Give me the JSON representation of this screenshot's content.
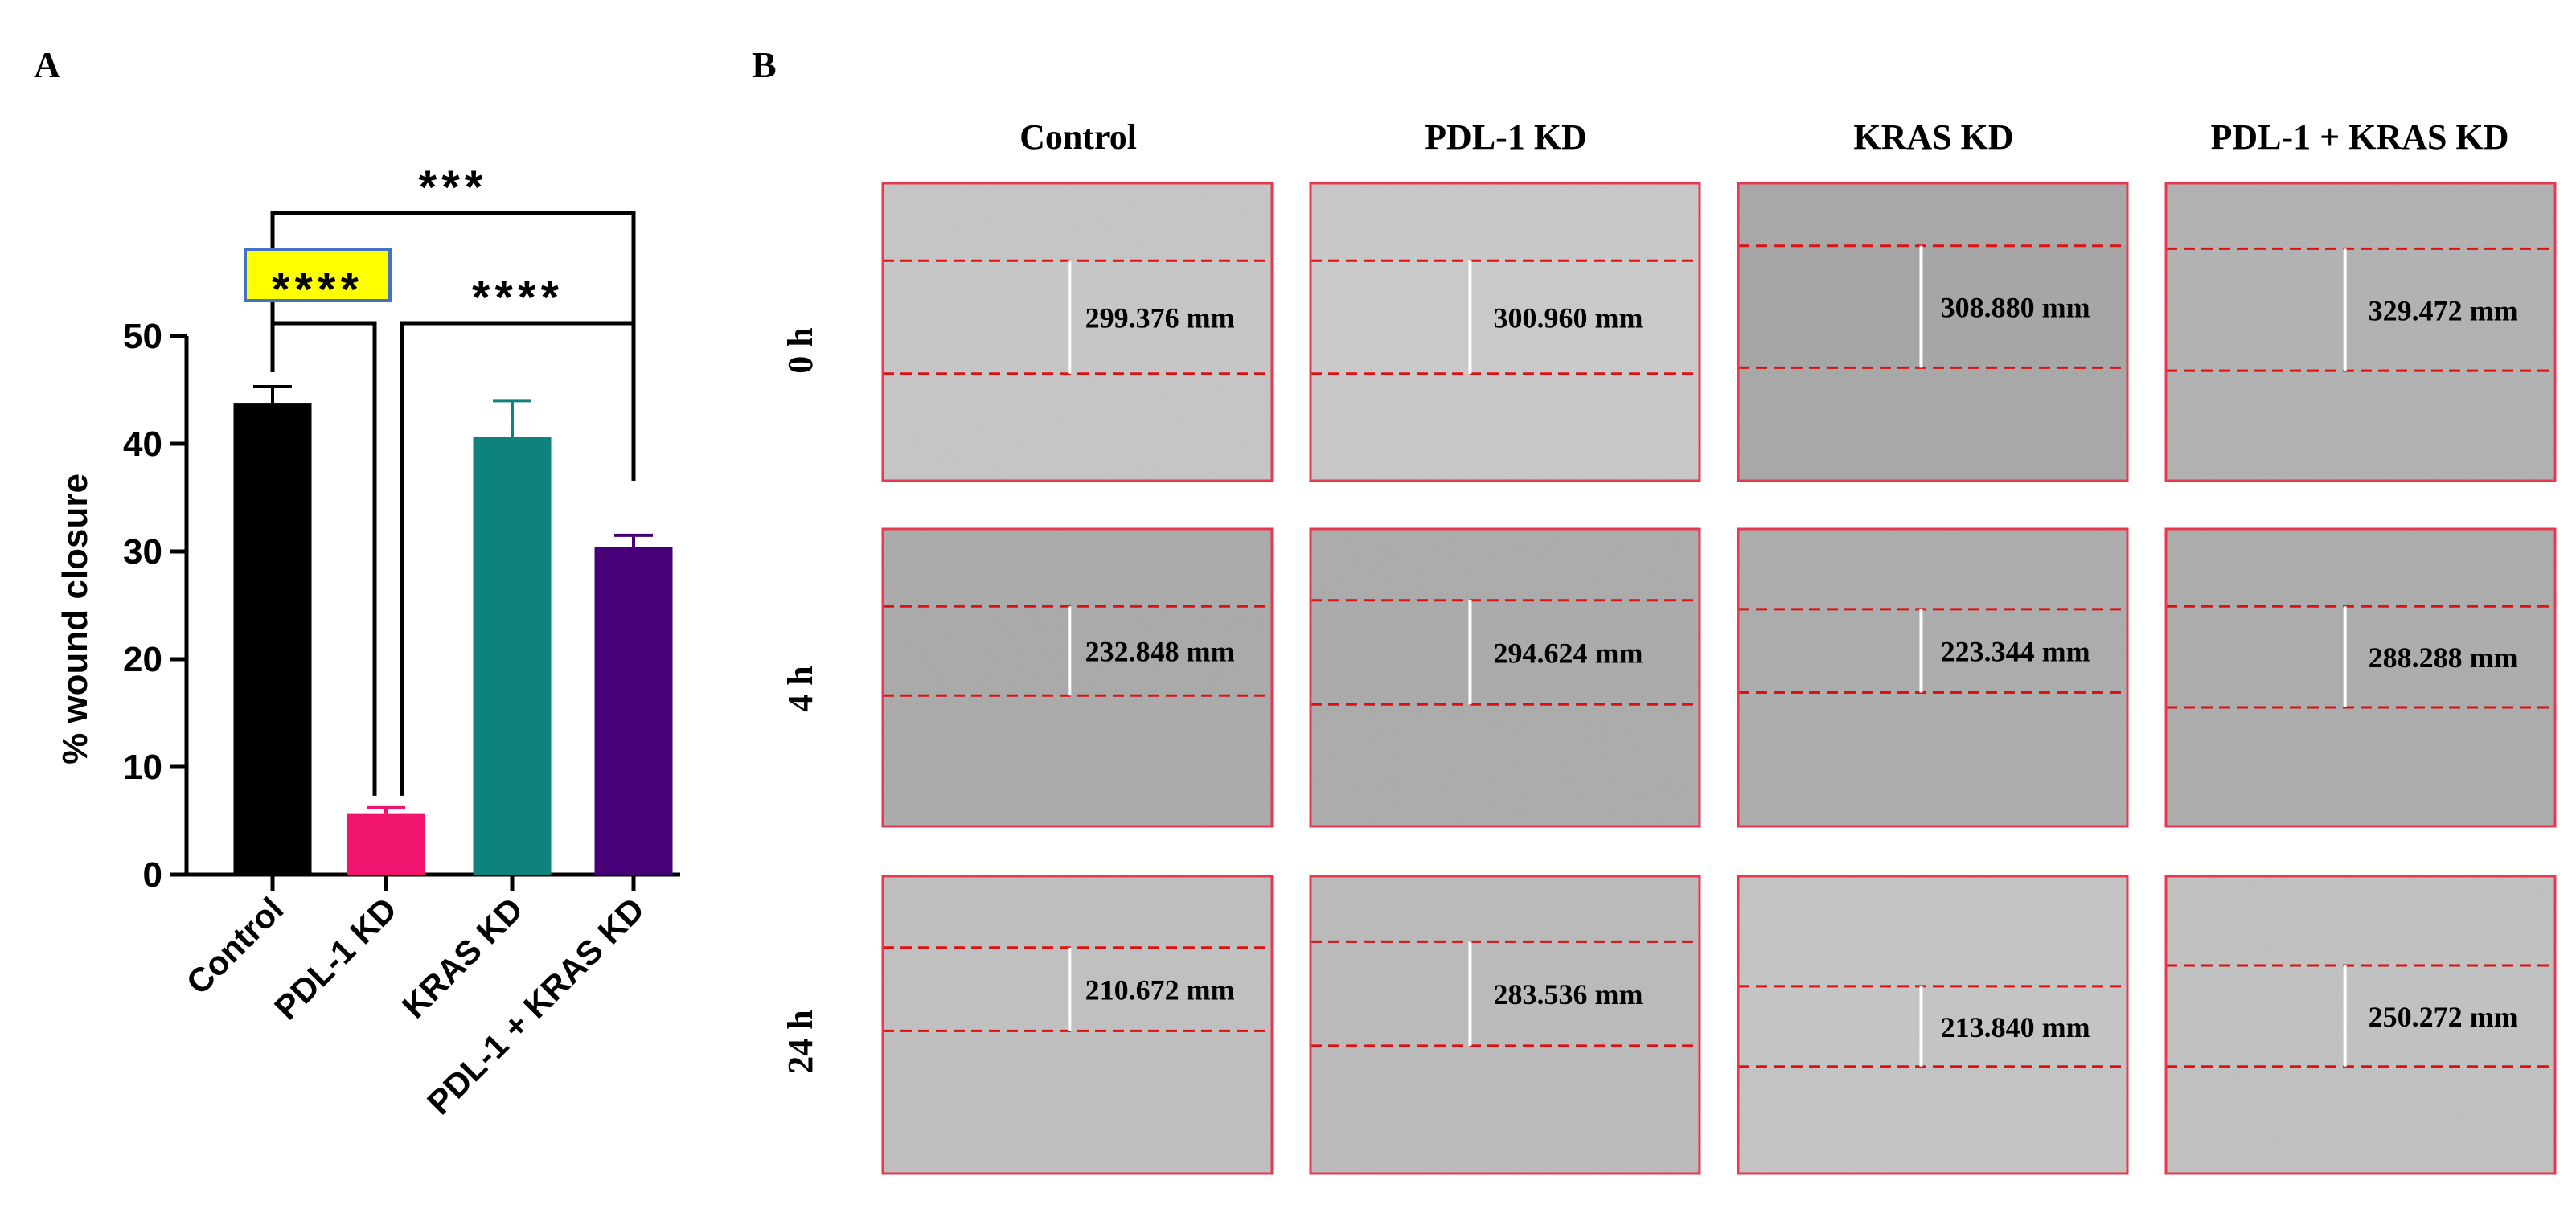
{
  "panel_a_label": "A",
  "panel_b_label": "B",
  "chart_data": {
    "type": "bar",
    "categories": [
      "Control",
      "PDL-1 KD",
      "KRAS KD",
      "PDL-1 + KRAS KD"
    ],
    "values": [
      43.8,
      5.7,
      40.6,
      30.4
    ],
    "errors": [
      1.5,
      0.5,
      3.4,
      1.1
    ],
    "colors": [
      "#000000",
      "#f0146e",
      "#0e827d",
      "#470078"
    ],
    "ylabel": "% wound closure",
    "xlabel": "",
    "ylim": [
      0,
      50
    ],
    "yticks": [
      0,
      10,
      20,
      30,
      40,
      50
    ],
    "significance": [
      {
        "from": "Control",
        "to": "PDL-1 + KRAS KD",
        "label": "***",
        "highlight": false
      },
      {
        "from": "Control",
        "to": "PDL-1 KD",
        "label": "****",
        "highlight": true
      },
      {
        "from": "PDL-1 KD",
        "to": "PDL-1 + KRAS KD",
        "label": "****",
        "highlight": false
      }
    ],
    "highlight_color": "#ffff00",
    "highlight_border": "#4472c4"
  },
  "micrographs": {
    "columns": [
      "Control",
      "PDL-1 KD",
      "KRAS KD",
      "PDL-1 + KRAS KD"
    ],
    "rows": [
      {
        "label": "0 h",
        "measurements": [
          "299.376 mm",
          "300.960 mm",
          "308.880 mm",
          "329.472 mm"
        ]
      },
      {
        "label": "4 h",
        "measurements": [
          "232.848 mm",
          "294.624 mm",
          "223.344 mm",
          "288.288 mm"
        ]
      },
      {
        "label": "24 h",
        "measurements": [
          "210.672 mm",
          "283.536 mm",
          "213.840 mm",
          "250.272 mm"
        ]
      }
    ],
    "frame_color": "#e8384f",
    "edge_line_color": "#e01010",
    "gap_line_color": "#ffffff",
    "tones": [
      [
        "#c6c6c6",
        "#c9c9c9",
        "#a6a6a6",
        "#b1b1b1"
      ],
      [
        "#a9a9a9",
        "#aaaaaa",
        "#ababab",
        "#ababab"
      ],
      [
        "#bfbfbf",
        "#bababa",
        "#c4c4c4",
        "#c1c1c1"
      ]
    ]
  }
}
